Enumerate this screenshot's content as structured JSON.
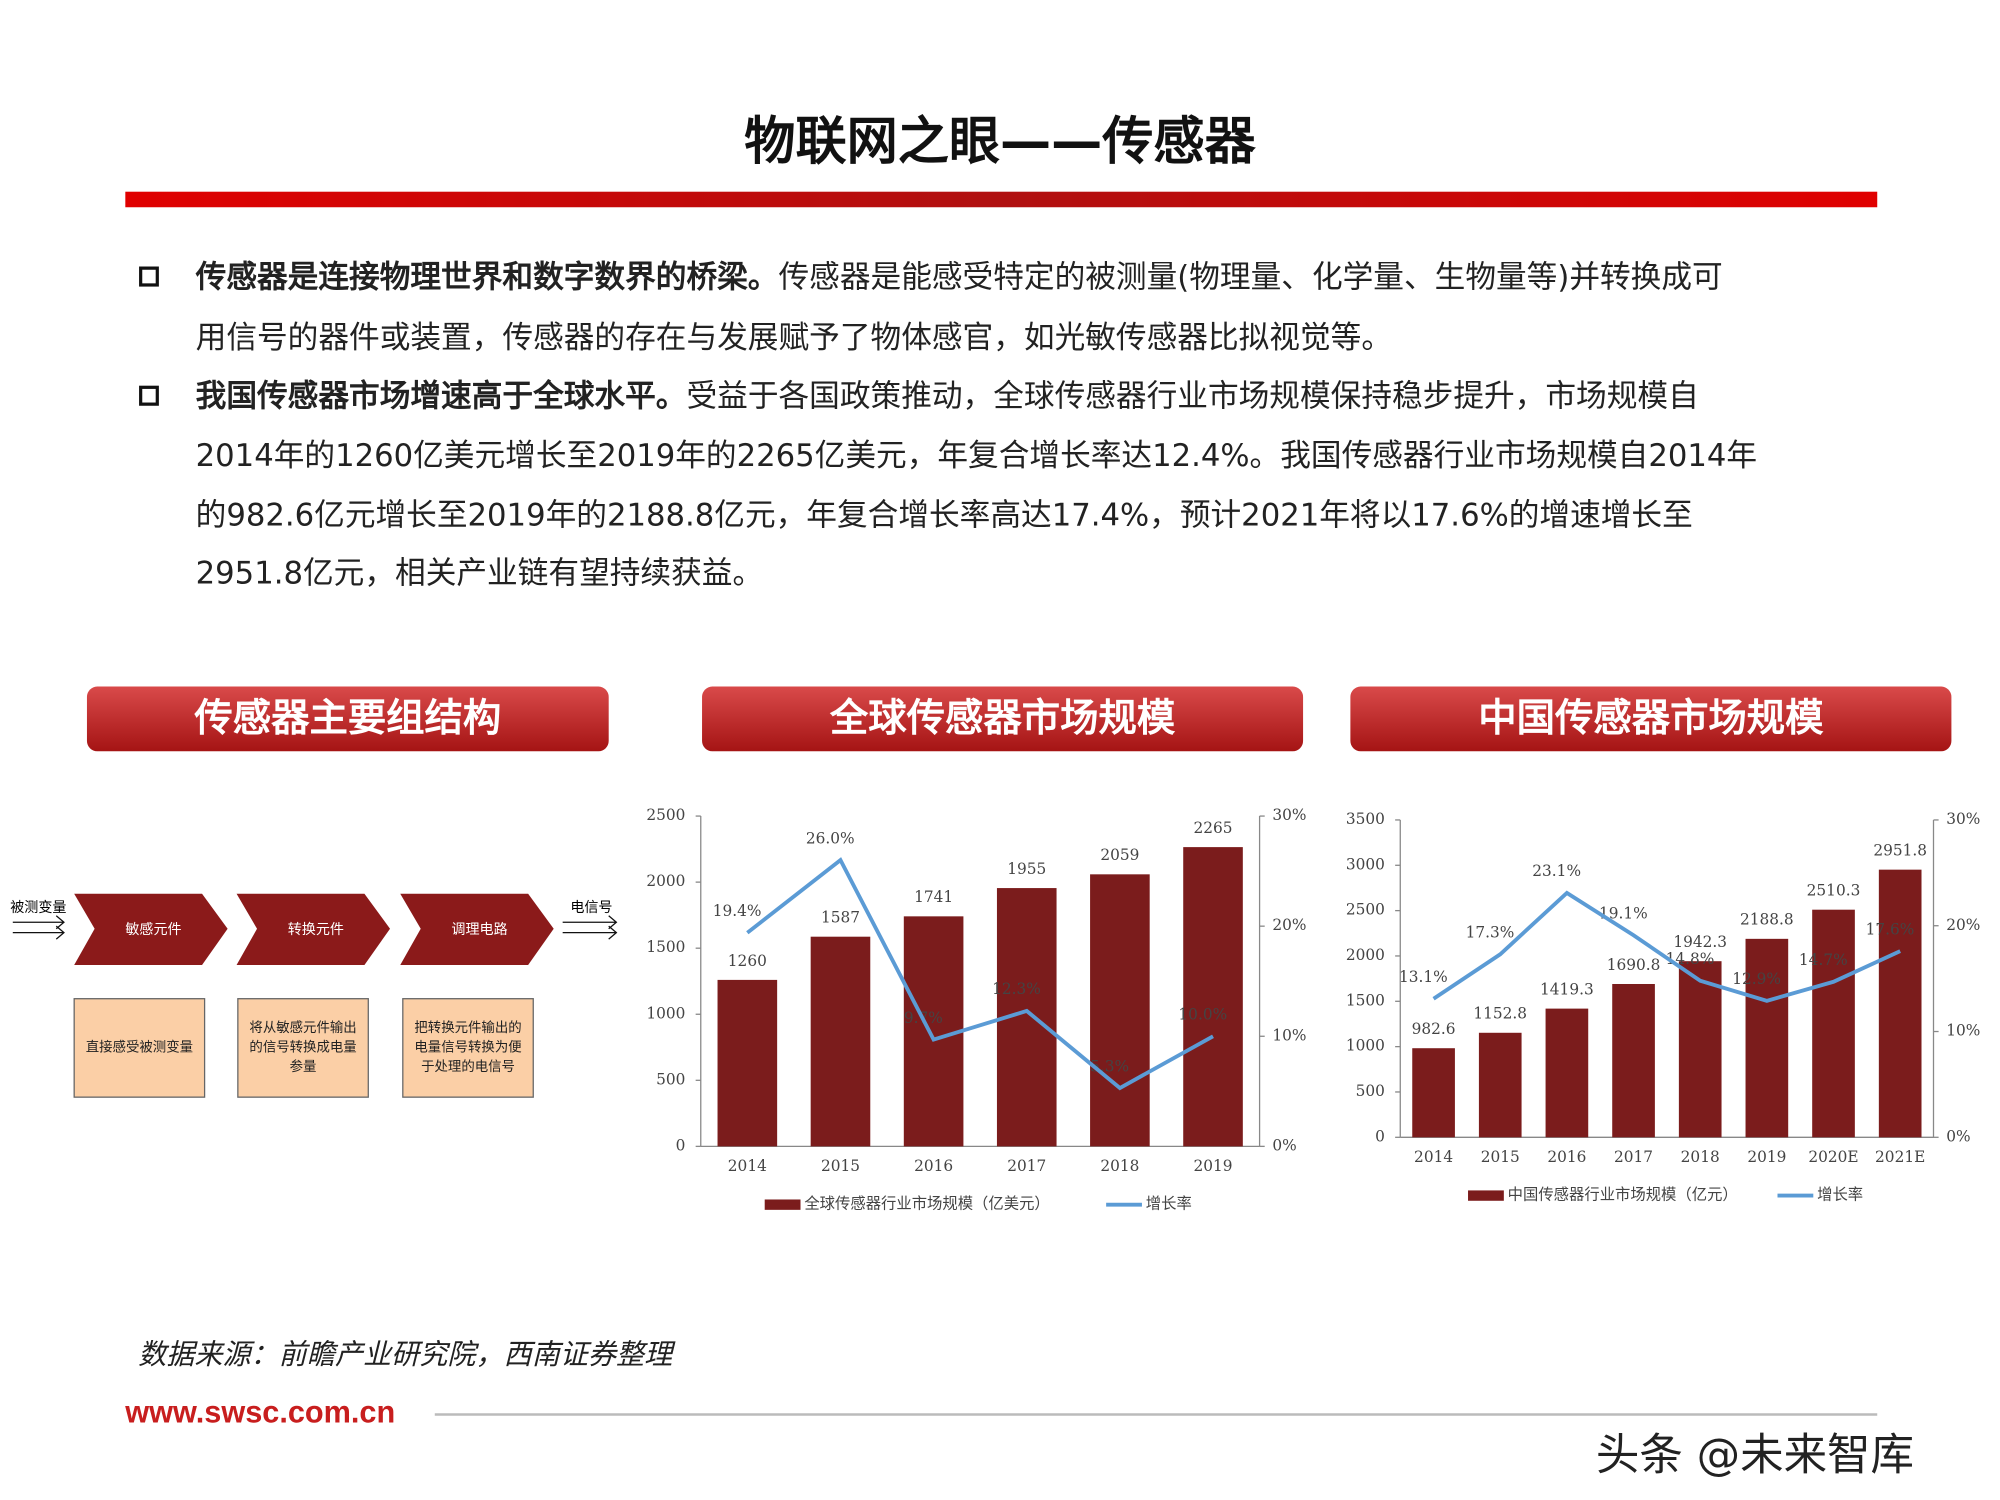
{
  "header": {
    "title": "物联网之眼——传感器"
  },
  "bullets": [
    {
      "bold": "传感器是连接物理世界和数字数界的桥梁。",
      "lines": [
        "传感器是能感受特定的被测量(物理量、化学量、生物量等)并转换成可",
        "用信号的器件或装置，传感器的存在与发展赋予了物体感官，如光敏传感器比拟视觉等。"
      ]
    },
    {
      "bold": "我国传感器市场增速高于全球水平。",
      "lines": [
        "受益于各国政策推动，全球传感器行业市场规模保持稳步提升，市场规模自",
        "2014年的1260亿美元增长至2019年的2265亿美元，年复合增长率达12.4%。我国传感器行业市场规模自2014年",
        "的982.6亿元增长至2019年的2188.8亿元，年复合增长率高达17.4%，预计2021年将以17.6%的增速增长至",
        "2951.8亿元，相关产业链有望持续获益。"
      ]
    }
  ],
  "diagram": {
    "title": "传感器主要组结构",
    "input": "被测变量",
    "output": "电信号",
    "stages": [
      {
        "label": "敏感元件",
        "desc": [
          "直接感受被测变量"
        ]
      },
      {
        "label": "转换元件",
        "desc": [
          "将从敏感元件输出",
          "的信号转换成电量",
          "参量"
        ]
      },
      {
        "label": "调理电路",
        "desc": [
          "把转换元件输出的",
          "电量信号转换为便",
          "于处理的电信号"
        ]
      }
    ]
  },
  "chart_data": [
    {
      "type": "bar",
      "title": "全球传感器市场规模",
      "categories": [
        "2014",
        "2015",
        "2016",
        "2017",
        "2018",
        "2019"
      ],
      "series": [
        {
          "name": "全球传感器行业市场规模（亿美元）",
          "color": "#7b1c1c",
          "values": [
            1260,
            1587,
            1741,
            1955,
            2059,
            2265
          ]
        },
        {
          "name": "增长率",
          "color": "#5b9bd5",
          "axis": "y2",
          "values": [
            19.4,
            26.0,
            9.7,
            12.3,
            5.3,
            10.0
          ],
          "value_labels": [
            "19.4%",
            "26.0%",
            "9.7%",
            "12.3%",
            "5.3%",
            "10.0%"
          ]
        }
      ],
      "ylim": [
        0,
        2500
      ],
      "yticks": [
        0,
        500,
        1000,
        1500,
        2000,
        2500
      ],
      "y2lim": [
        0,
        30
      ],
      "y2ticks": [
        {
          "value": 0,
          "label": "0%"
        },
        {
          "value": 10,
          "label": "10%"
        },
        {
          "value": 20,
          "label": "20%"
        },
        {
          "value": 30,
          "label": "30%"
        }
      ]
    },
    {
      "type": "bar",
      "title": "中国传感器市场规模",
      "categories": [
        "2014",
        "2015",
        "2016",
        "2017",
        "2018",
        "2019",
        "2020E",
        "2021E"
      ],
      "series": [
        {
          "name": "中国传感器行业市场规模（亿元）",
          "color": "#7b1c1c",
          "values": [
            982.6,
            1152.8,
            1419.3,
            1690.8,
            1942.3,
            2188.8,
            2510.3,
            2951.8
          ]
        },
        {
          "name": "增长率",
          "color": "#5b9bd5",
          "axis": "y2",
          "values": [
            13.1,
            17.3,
            23.1,
            19.1,
            14.8,
            12.9,
            14.7,
            17.6
          ],
          "value_labels": [
            "13.1%",
            "17.3%",
            "23.1%",
            "19.1%",
            "14.8%",
            "12.9%",
            "14.7%",
            "17.6%"
          ]
        }
      ],
      "ylim": [
        0,
        3500
      ],
      "yticks": [
        0,
        500,
        1000,
        1500,
        2000,
        2500,
        3000,
        3500
      ],
      "y2lim": [
        0,
        30
      ],
      "y2ticks": [
        {
          "value": 0,
          "label": "0%"
        },
        {
          "value": 10,
          "label": "10%"
        },
        {
          "value": 20,
          "label": "20%"
        },
        {
          "value": 30,
          "label": "30%"
        }
      ]
    }
  ],
  "footer": {
    "source": "数据来源：前瞻产业研究院，西南证券整理",
    "url": "www.swsc.com.cn",
    "watermark": "头条 @未来智库"
  }
}
